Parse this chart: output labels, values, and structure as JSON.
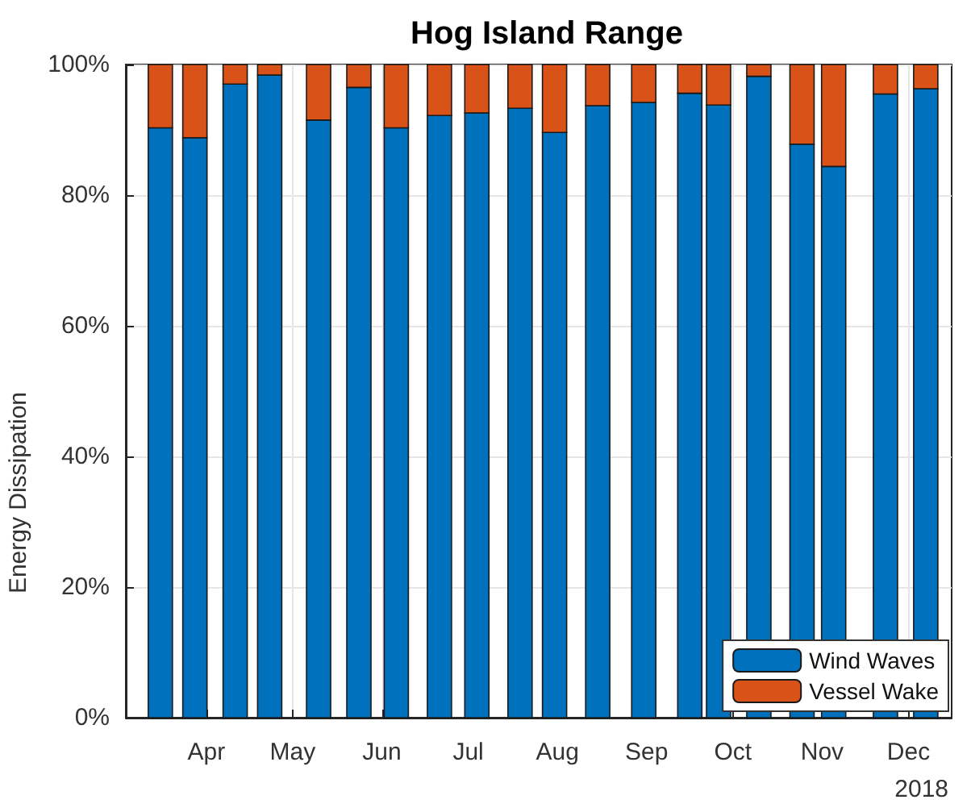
{
  "chart_data": {
    "type": "bar",
    "title": "Hog Island Range",
    "ylabel": "Energy Dissipation",
    "stacked": true,
    "x": [
      "2018-03-16",
      "2018-03-28",
      "2018-04-11",
      "2018-04-23",
      "2018-05-10",
      "2018-05-24",
      "2018-06-06",
      "2018-06-21",
      "2018-07-04",
      "2018-07-19",
      "2018-07-31",
      "2018-08-15",
      "2018-08-31",
      "2018-09-16",
      "2018-09-26",
      "2018-10-10",
      "2018-10-25",
      "2018-11-05",
      "2018-11-23",
      "2018-12-07"
    ],
    "series": [
      {
        "name": "Wind Waves",
        "color": "#0072bd",
        "values": [
          90.3,
          88.8,
          97.0,
          98.4,
          91.5,
          96.5,
          90.3,
          92.2,
          92.6,
          93.3,
          89.6,
          93.7,
          94.2,
          95.6,
          93.8,
          98.2,
          87.8,
          84.4,
          95.5,
          96.3
        ]
      },
      {
        "name": "Vessel Wake",
        "color": "#d95319",
        "values": [
          9.7,
          11.2,
          3.0,
          1.6,
          8.5,
          3.5,
          9.7,
          7.8,
          7.4,
          6.7,
          10.4,
          6.3,
          5.8,
          4.4,
          6.2,
          1.8,
          12.2,
          15.6,
          4.5,
          3.7
        ]
      }
    ],
    "xlim": [
      "2018-03-04",
      "2018-12-16"
    ],
    "xticks": [
      {
        "value": "2018-04-01",
        "label": "Apr"
      },
      {
        "value": "2018-05-01",
        "label": "May"
      },
      {
        "value": "2018-06-01",
        "label": "Jun"
      },
      {
        "value": "2018-07-01",
        "label": "Jul"
      },
      {
        "value": "2018-08-01",
        "label": "Aug"
      },
      {
        "value": "2018-09-01",
        "label": "Sep"
      },
      {
        "value": "2018-10-01",
        "label": "Oct"
      },
      {
        "value": "2018-11-01",
        "label": "Nov"
      },
      {
        "value": "2018-12-01",
        "label": "Dec"
      }
    ],
    "ylim": [
      0,
      100
    ],
    "yticks": [
      {
        "value": 0,
        "label": "0%"
      },
      {
        "value": 20,
        "label": "20%"
      },
      {
        "value": 40,
        "label": "40%"
      },
      {
        "value": 60,
        "label": "60%"
      },
      {
        "value": 80,
        "label": "80%"
      },
      {
        "value": 100,
        "label": "100%"
      }
    ],
    "annotations": [
      "2018"
    ],
    "grid": true,
    "legend": "bottom right"
  }
}
